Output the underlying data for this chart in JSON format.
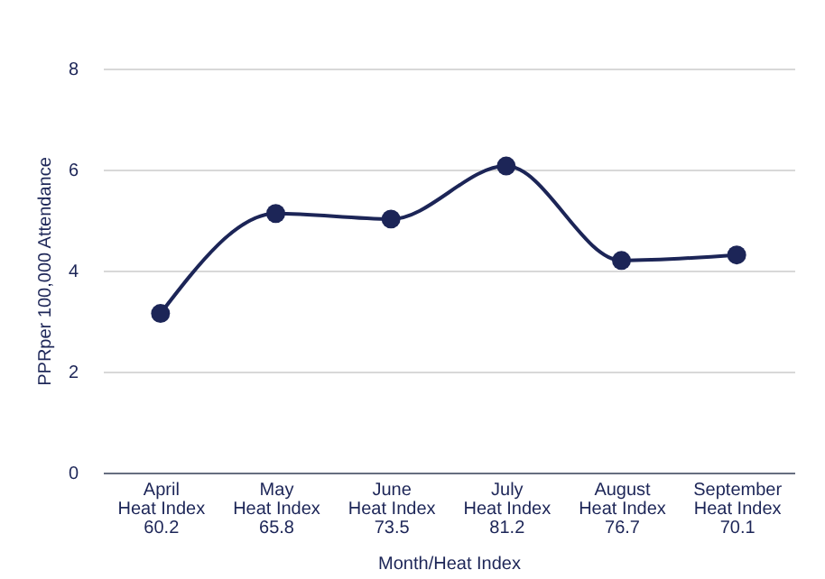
{
  "chart_data": {
    "type": "line",
    "xlabel": "Month/Heat Index",
    "ylabel": "PPRper 100,000 Attendance",
    "categories": [
      "April\nHeat Index\n60.2",
      "May\nHeat Index\n65.8",
      "June\nHeat Index\n73.5",
      "July\nHeat Index\n81.2",
      "August\nHeat Index\n76.7",
      "September\nHeat Index\n70.1"
    ],
    "series": [
      {
        "color": "#1c2557",
        "values": [
          3.15,
          5.13,
          5.02,
          6.07,
          4.2,
          4.31
        ]
      }
    ],
    "ylim": [
      0,
      8
    ],
    "yticks": [
      0,
      2,
      4,
      6,
      8
    ],
    "grid": "y",
    "marker": "circle",
    "line_style": "solid"
  }
}
